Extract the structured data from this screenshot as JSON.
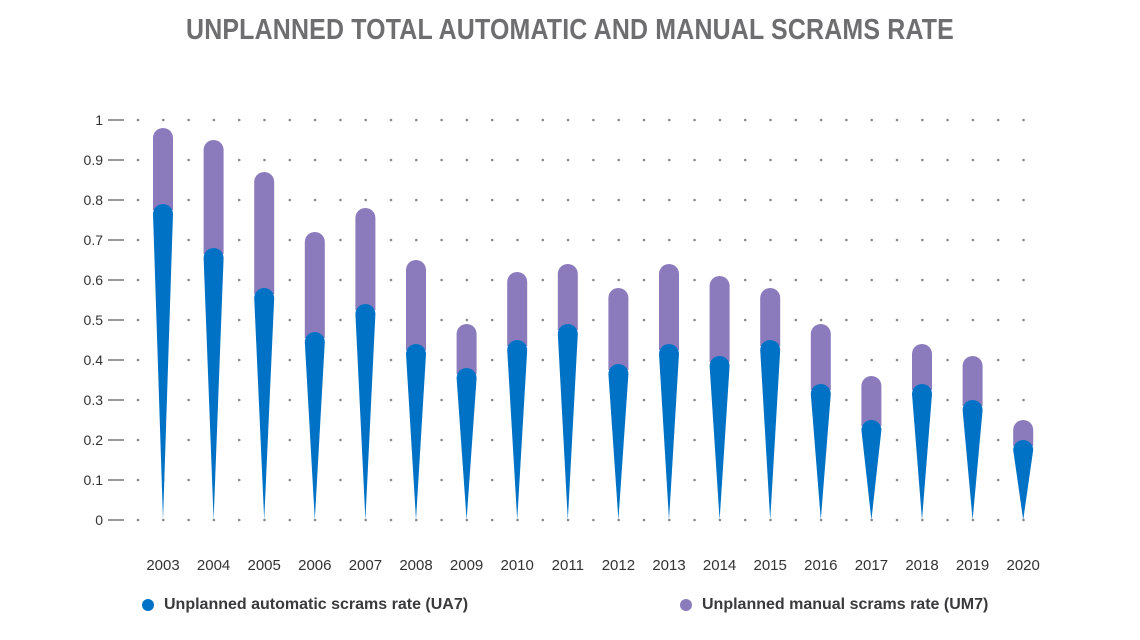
{
  "chart_data": {
    "type": "bar",
    "title": "UNPLANNED TOTAL AUTOMATIC AND MANUAL SCRAMS RATE",
    "categories": [
      "2003",
      "2004",
      "2005",
      "2006",
      "2007",
      "2008",
      "2009",
      "2010",
      "2011",
      "2012",
      "2013",
      "2014",
      "2015",
      "2016",
      "2017",
      "2018",
      "2019",
      "2020"
    ],
    "series": [
      {
        "name": "Unplanned automatic scrams rate (UA7)",
        "color": "#0072c6",
        "values": [
          0.79,
          0.68,
          0.58,
          0.47,
          0.54,
          0.44,
          0.38,
          0.45,
          0.49,
          0.39,
          0.44,
          0.41,
          0.45,
          0.34,
          0.25,
          0.34,
          0.3,
          0.2
        ]
      },
      {
        "name": "Unplanned manual scrams rate (UM7)",
        "color": "#8b7bbd",
        "values": [
          0.19,
          0.27,
          0.29,
          0.25,
          0.24,
          0.21,
          0.11,
          0.17,
          0.15,
          0.19,
          0.2,
          0.2,
          0.13,
          0.15,
          0.11,
          0.1,
          0.11,
          0.05
        ]
      }
    ],
    "stacked": true,
    "ylim": [
      0,
      1
    ],
    "yticks": [
      "0",
      "0.1",
      "0.2",
      "0.3",
      "0.4",
      "0.5",
      "0.6",
      "0.7",
      "0.8",
      "0.9",
      "1"
    ],
    "xlabel": "",
    "ylabel": "",
    "grid": "dotted",
    "legend_position": "bottom"
  }
}
